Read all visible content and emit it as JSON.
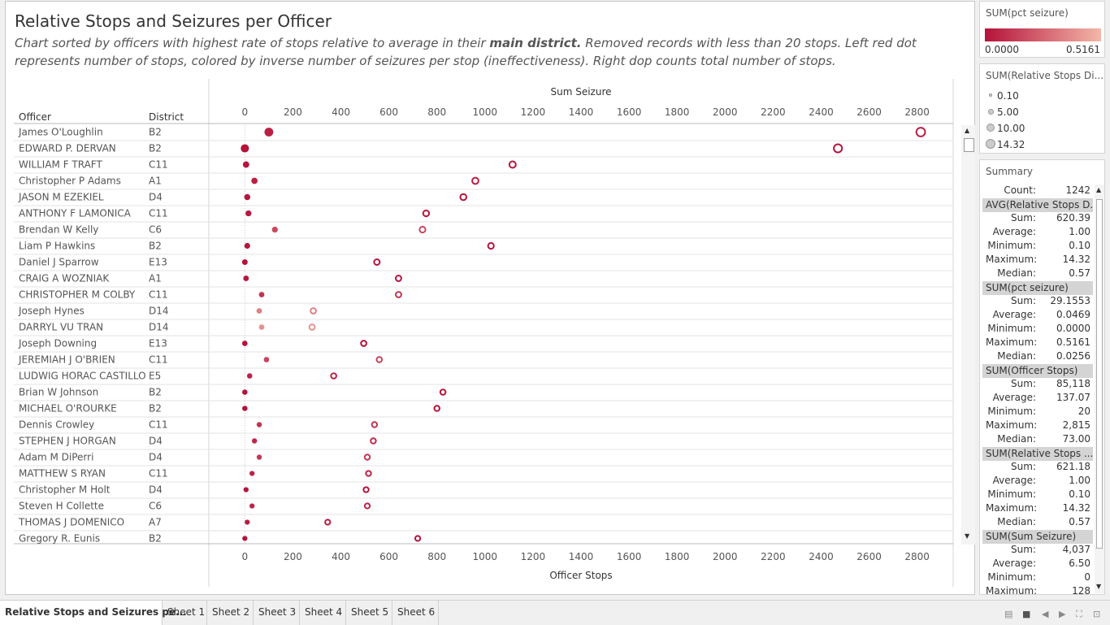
{
  "title": "Relative Stops and Seizures per Officer",
  "subtitle_pre": "Chart sorted by officers with highest rate of stops relative to average in their ",
  "subtitle_bold": "main district.",
  "subtitle_post": " Removed records with less than 20 stops. Left red dot represents number of stops, colored by inverse number of seizures per stop (ineffectiveness). Right dop counts total number of stops.",
  "colors": {
    "dark_red": "#b5123a",
    "light_red": "#f4b7a8",
    "grid": "#e3e3e3"
  },
  "chart_data": {
    "type": "scatter",
    "top_axis_title": "Sum Seizure",
    "bottom_axis_title": "Officer Stops",
    "col_officer": "Officer",
    "col_district": "District",
    "xlim": [
      -150,
      2950
    ],
    "ticks": [
      0,
      200,
      400,
      600,
      800,
      1000,
      1200,
      1400,
      1600,
      1800,
      2000,
      2200,
      2400,
      2600,
      2800
    ],
    "tick_labels": [
      "0",
      "200",
      "400",
      "600",
      "800",
      "1000",
      "1200",
      "1400",
      "1600",
      "1800",
      "2000",
      "2200",
      "2400",
      "2600",
      "2800"
    ],
    "legend_color_title": "SUM(pct seizure)",
    "legend_color_min": "0.0000",
    "legend_color_max": "0.5161",
    "legend_size_title": "SUM(Relative Stops Di...",
    "legend_size_items": [
      "0.10",
      "5.00",
      "10.00",
      "14.32"
    ],
    "rows": [
      {
        "officer": "James  O'Loughlin",
        "district": "B2",
        "seizure": 100,
        "stops": 2815,
        "pct": 0.04,
        "rel": 14.32
      },
      {
        "officer": "EDWARD P.  DERVAN",
        "district": "B2",
        "seizure": 0,
        "stops": 2470,
        "pct": 0.0,
        "rel": 12.5
      },
      {
        "officer": "WILLIAM F TRAFT",
        "district": "C11",
        "seizure": 5,
        "stops": 1115,
        "pct": 0.01,
        "rel": 7.0
      },
      {
        "officer": "Christopher P Adams",
        "district": "A1",
        "seizure": 40,
        "stops": 960,
        "pct": 0.04,
        "rel": 6.5
      },
      {
        "officer": "JASON M EZEKIEL",
        "district": "D4",
        "seizure": 10,
        "stops": 910,
        "pct": 0.01,
        "rel": 6.0
      },
      {
        "officer": "ANTHONY F LAMONICA",
        "district": "C11",
        "seizure": 15,
        "stops": 755,
        "pct": 0.02,
        "rel": 5.5
      },
      {
        "officer": "Brendan W Kelly",
        "district": "C6",
        "seizure": 125,
        "stops": 740,
        "pct": 0.17,
        "rel": 5.3
      },
      {
        "officer": "Liam P Hawkins",
        "district": "B2",
        "seizure": 10,
        "stops": 1025,
        "pct": 0.01,
        "rel": 5.0
      },
      {
        "officer": "Daniel J Sparrow",
        "district": "E13",
        "seizure": 0,
        "stops": 550,
        "pct": 0.0,
        "rel": 4.5
      },
      {
        "officer": "CRAIG A WOZNIAK",
        "district": "A1",
        "seizure": 5,
        "stops": 640,
        "pct": 0.01,
        "rel": 4.3
      },
      {
        "officer": "CHRISTOPHER M COLBY",
        "district": "C11",
        "seizure": 70,
        "stops": 640,
        "pct": 0.11,
        "rel": 4.1
      },
      {
        "officer": "Joseph  Hynes",
        "district": "D14",
        "seizure": 60,
        "stops": 285,
        "pct": 0.35,
        "rel": 4.0
      },
      {
        "officer": "DARRYL VU  TRAN",
        "district": "D14",
        "seizure": 70,
        "stops": 280,
        "pct": 0.4,
        "rel": 3.9
      },
      {
        "officer": "Joseph  Downing",
        "district": "E13",
        "seizure": 0,
        "stops": 495,
        "pct": 0.0,
        "rel": 3.8
      },
      {
        "officer": "JEREMIAH J O'BRIEN",
        "district": "C11",
        "seizure": 90,
        "stops": 560,
        "pct": 0.16,
        "rel": 3.7
      },
      {
        "officer": "LUDWIG HORAC CASTILLO",
        "district": "E5",
        "seizure": 20,
        "stops": 370,
        "pct": 0.05,
        "rel": 3.6
      },
      {
        "officer": "Brian W Johnson",
        "district": "B2",
        "seizure": 0,
        "stops": 825,
        "pct": 0.0,
        "rel": 3.5
      },
      {
        "officer": "MICHAEL  O'ROURKE",
        "district": "B2",
        "seizure": 0,
        "stops": 800,
        "pct": 0.0,
        "rel": 3.4
      },
      {
        "officer": "Dennis  Crowley",
        "district": "C11",
        "seizure": 60,
        "stops": 540,
        "pct": 0.11,
        "rel": 3.3
      },
      {
        "officer": "STEPHEN J HORGAN",
        "district": "D4",
        "seizure": 40,
        "stops": 535,
        "pct": 0.07,
        "rel": 3.2
      },
      {
        "officer": "Adam  M DiPerri",
        "district": "D4",
        "seizure": 60,
        "stops": 510,
        "pct": 0.12,
        "rel": 3.1
      },
      {
        "officer": "MATTHEW S RYAN",
        "district": "C11",
        "seizure": 30,
        "stops": 515,
        "pct": 0.06,
        "rel": 3.0
      },
      {
        "officer": "Christopher  M Holt",
        "district": "D4",
        "seizure": 5,
        "stops": 505,
        "pct": 0.01,
        "rel": 2.9
      },
      {
        "officer": "Steven  H Collette",
        "district": "C6",
        "seizure": 30,
        "stops": 510,
        "pct": 0.06,
        "rel": 2.8
      },
      {
        "officer": "THOMAS J DOMENICO",
        "district": "A7",
        "seizure": 10,
        "stops": 345,
        "pct": 0.03,
        "rel": 2.7
      },
      {
        "officer": "Gregory R.  Eunis",
        "district": "B2",
        "seizure": 0,
        "stops": 720,
        "pct": 0.0,
        "rel": 2.6
      }
    ]
  },
  "summary": {
    "title": "Summary",
    "count_label": "Count:",
    "count_value": "1242",
    "sections": [
      {
        "header": "AVG(Relative Stops D...",
        "rows": [
          [
            "Sum:",
            "620.39"
          ],
          [
            "Average:",
            "1.00"
          ],
          [
            "Minimum:",
            "0.10"
          ],
          [
            "Maximum:",
            "14.32"
          ],
          [
            "Median:",
            "0.57"
          ]
        ]
      },
      {
        "header": "SUM(pct seizure)",
        "rows": [
          [
            "Sum:",
            "29.1553"
          ],
          [
            "Average:",
            "0.0469"
          ],
          [
            "Minimum:",
            "0.0000"
          ],
          [
            "Maximum:",
            "0.5161"
          ],
          [
            "Median:",
            "0.0256"
          ]
        ]
      },
      {
        "header": "SUM(Officer Stops)",
        "rows": [
          [
            "Sum:",
            "85,118"
          ],
          [
            "Average:",
            "137.07"
          ],
          [
            "Minimum:",
            "20"
          ],
          [
            "Maximum:",
            "2,815"
          ],
          [
            "Median:",
            "73.00"
          ]
        ]
      },
      {
        "header": "SUM(Relative Stops ...",
        "rows": [
          [
            "Sum:",
            "621.18"
          ],
          [
            "Average:",
            "1.00"
          ],
          [
            "Minimum:",
            "0.10"
          ],
          [
            "Maximum:",
            "14.32"
          ],
          [
            "Median:",
            "0.57"
          ]
        ]
      },
      {
        "header": "SUM(Sum Seizure)",
        "rows": [
          [
            "Sum:",
            "4,037"
          ],
          [
            "Average:",
            "6.50"
          ],
          [
            "Minimum:",
            "0"
          ],
          [
            "Maximum:",
            "128"
          ]
        ]
      }
    ]
  },
  "tabs": [
    "Relative Stops and Seizures pe...",
    "Sheet 1",
    "Sheet 2",
    "Sheet 3",
    "Sheet 4",
    "Sheet 5",
    "Sheet 6"
  ]
}
